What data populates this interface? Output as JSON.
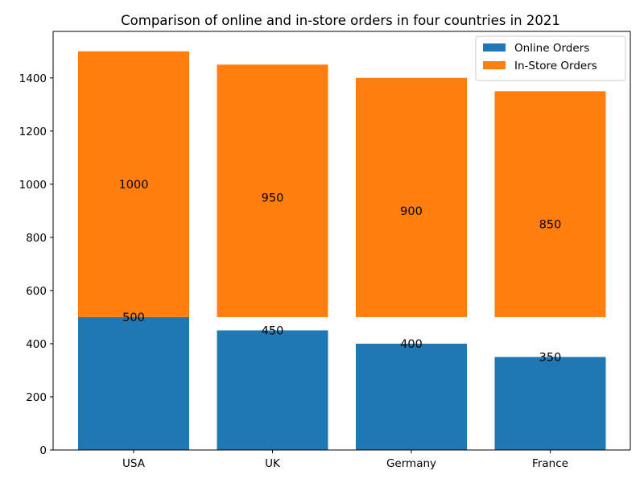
{
  "chart_data": {
    "type": "bar",
    "title": "Comparison of online and in-store orders in four countries in 2021",
    "xlabel": "",
    "ylabel": "",
    "categories": [
      "USA",
      "UK",
      "Germany",
      "France"
    ],
    "series": [
      {
        "name": "Online Orders",
        "color": "#1f77b4",
        "values": [
          500,
          450,
          400,
          350
        ],
        "base": [
          0,
          0,
          0,
          0
        ],
        "labels": [
          "500",
          "450",
          "400",
          "350"
        ]
      },
      {
        "name": "In-Store Orders",
        "color": "#ff7f0e",
        "values": [
          1000,
          950,
          900,
          850
        ],
        "base": [
          500,
          500,
          500,
          500
        ],
        "labels": [
          "1000",
          "950",
          "900",
          "850"
        ]
      }
    ],
    "ylim": [
      0,
      1575
    ],
    "yticks": [
      0,
      200,
      400,
      600,
      800,
      1000,
      1200,
      1400
    ],
    "grid": false,
    "legend_position": "top-right"
  }
}
